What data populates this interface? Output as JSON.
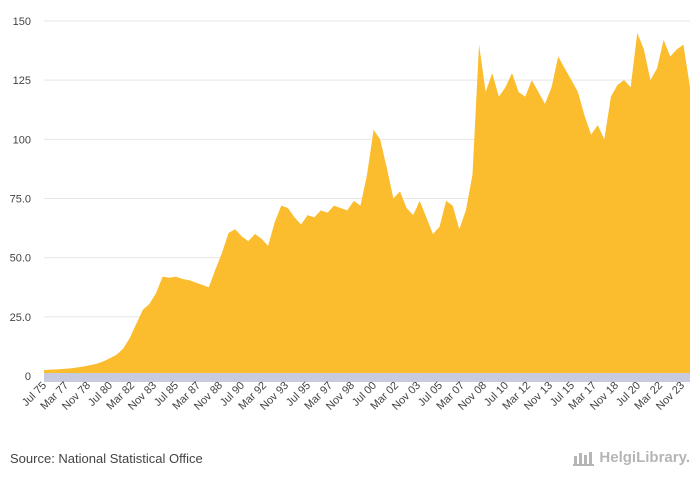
{
  "colors": {
    "area": "#fbbc2e",
    "axis_band": "#c8cbe0",
    "grid": "#e6e6e6",
    "text": "#444444",
    "logo": "#b5b5b5"
  },
  "source": "Source: National Statistical Office",
  "logo_text": "HelgiLibrary.",
  "logo_icon": "building-icon",
  "chart_data": {
    "type": "area",
    "title": "",
    "xlabel": "",
    "ylabel": "",
    "ylim": [
      0,
      150
    ],
    "yticks": [
      "0",
      "25.0",
      "50.0",
      "75.0",
      "100",
      "125",
      "150"
    ],
    "ytick_values": [
      0,
      25,
      50,
      75,
      100,
      125,
      150
    ],
    "grid": true,
    "x_tick_labels": [
      "Jul 75",
      "Mar 77",
      "Nov 78",
      "Jul 80",
      "Mar 82",
      "Nov 83",
      "Jul 85",
      "Mar 87",
      "Nov 88",
      "Jul 90",
      "Mar 92",
      "Nov 93",
      "Jul 95",
      "Mar 97",
      "Nov 98",
      "Jul 00",
      "Mar 02",
      "Nov 03",
      "Jul 05",
      "Mar 07",
      "Nov 08",
      "Jul 10",
      "Mar 12",
      "Nov 13",
      "Jul 15",
      "Mar 17",
      "Nov 18",
      "Jul 20",
      "Mar 22",
      "Nov 23"
    ],
    "x": [
      "Jul 75",
      "Jan 76",
      "Jul 76",
      "Jan 77",
      "Jul 77",
      "Jan 78",
      "Jul 78",
      "Jan 79",
      "Jul 79",
      "Jan 80",
      "Jul 80",
      "Jan 81",
      "Jul 81",
      "Jan 82",
      "Jul 82",
      "Jan 83",
      "Jul 83",
      "Jan 84",
      "Jul 84",
      "Jan 85",
      "Jul 85",
      "Jan 86",
      "Jul 86",
      "Jan 87",
      "Jul 87",
      "Jan 88",
      "Jul 88",
      "Jan 89",
      "Jul 89",
      "Jan 90",
      "Jul 90",
      "Jan 91",
      "Jul 91",
      "Jan 92",
      "Jul 92",
      "Jan 93",
      "Jul 93",
      "Jan 94",
      "Jul 94",
      "Jan 95",
      "Jul 95",
      "Jan 96",
      "Jul 96",
      "Jan 97",
      "Jul 97",
      "Jan 98",
      "Jul 98",
      "Jan 99",
      "Jul 99",
      "Jan 00",
      "Jul 00",
      "Jan 01",
      "Jul 01",
      "Jan 02",
      "Jul 02",
      "Jan 03",
      "Jul 03",
      "Jan 04",
      "Jul 04",
      "Jan 05",
      "Jul 05",
      "Jan 06",
      "Jul 06",
      "Jan 07",
      "Jul 07",
      "Jan 08",
      "Jul 08",
      "Jan 09",
      "Jul 09",
      "Jan 10",
      "Jul 10",
      "Jan 11",
      "Jul 11",
      "Jan 12",
      "Jul 12",
      "Jan 13",
      "Jul 13",
      "Jan 14",
      "Jul 14",
      "Jan 15",
      "Jul 15",
      "Jan 16",
      "Jul 16",
      "Jan 17",
      "Jul 17",
      "Jan 18",
      "Jul 18",
      "Jan 19",
      "Jul 19",
      "Jan 20",
      "Jul 20",
      "Jan 21",
      "Jul 21",
      "Jan 22",
      "Jul 22",
      "Jan 23",
      "Jul 23",
      "Jan 24",
      "Jul 24"
    ],
    "values": [
      2.5,
      2.7,
      2.8,
      3.0,
      3.2,
      3.6,
      4.0,
      4.6,
      5.2,
      6.2,
      7.5,
      9.0,
      11.5,
      16.0,
      22.0,
      28.0,
      30.5,
      35.0,
      42.0,
      41.5,
      42.0,
      41.0,
      40.5,
      39.5,
      38.5,
      37.5,
      45.0,
      52.0,
      60.5,
      62.0,
      59.0,
      57.0,
      60.0,
      58.0,
      55.0,
      65.0,
      72.0,
      71.0,
      67.0,
      64.0,
      68.0,
      67.0,
      70.0,
      69.0,
      72.0,
      71.0,
      70.0,
      74.0,
      72.0,
      85.0,
      104.0,
      100.0,
      88.0,
      75.0,
      78.0,
      71.0,
      68.0,
      74.0,
      67.0,
      60.0,
      63.0,
      74.0,
      72.0,
      62.0,
      70.0,
      85.0,
      140.0,
      120.0,
      128.0,
      118.0,
      122.0,
      128.0,
      120.0,
      118.0,
      125.0,
      120.0,
      115.0,
      122.0,
      135.0,
      130.0,
      125.0,
      120.0,
      110.0,
      102.0,
      106.0,
      100.0,
      118.0,
      123.0,
      125.0,
      122.0,
      145.0,
      138.0,
      125.0,
      130.0,
      142.0,
      135.0,
      138.0,
      140.0,
      122.0
    ]
  }
}
